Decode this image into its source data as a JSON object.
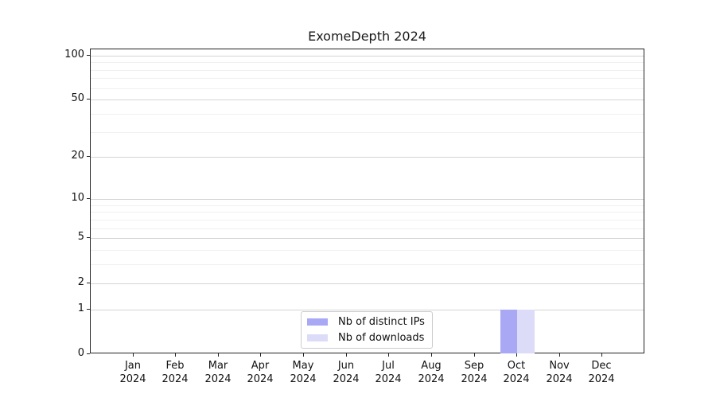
{
  "title": "ExomeDepth 2024",
  "chart_data": {
    "type": "bar",
    "title": "ExomeDepth 2024",
    "categories": [
      "Jan 2024",
      "Feb 2024",
      "Mar 2024",
      "Apr 2024",
      "May 2024",
      "Jun 2024",
      "Jul 2024",
      "Aug 2024",
      "Sep 2024",
      "Oct 2024",
      "Nov 2024",
      "Dec 2024"
    ],
    "series": [
      {
        "name": "Nb of distinct IPs",
        "color": "#a8a8f5",
        "values": [
          0,
          0,
          0,
          0,
          0,
          0,
          0,
          0,
          0,
          1,
          0,
          0
        ]
      },
      {
        "name": "Nb of downloads",
        "color": "#dcdcf8",
        "values": [
          0,
          0,
          0,
          0,
          0,
          0,
          0,
          0,
          0,
          1,
          0,
          0
        ]
      }
    ],
    "xlabel": "",
    "ylabel": "",
    "yscale": "log1p",
    "ylim": [
      0,
      110
    ],
    "y_major_ticks": [
      0,
      1,
      2,
      5,
      10,
      20,
      50,
      100
    ],
    "y_minor_ticks": [
      3,
      4,
      6,
      7,
      8,
      9,
      30,
      40,
      60,
      70,
      80,
      90
    ],
    "grid": true,
    "legend_position": "lower center",
    "colors": {
      "grid_major": "#d4d4d4",
      "grid_minor": "#f0f0f0",
      "axis": "#222222",
      "legend_border": "#cccccc",
      "background": "#ffffff"
    }
  }
}
